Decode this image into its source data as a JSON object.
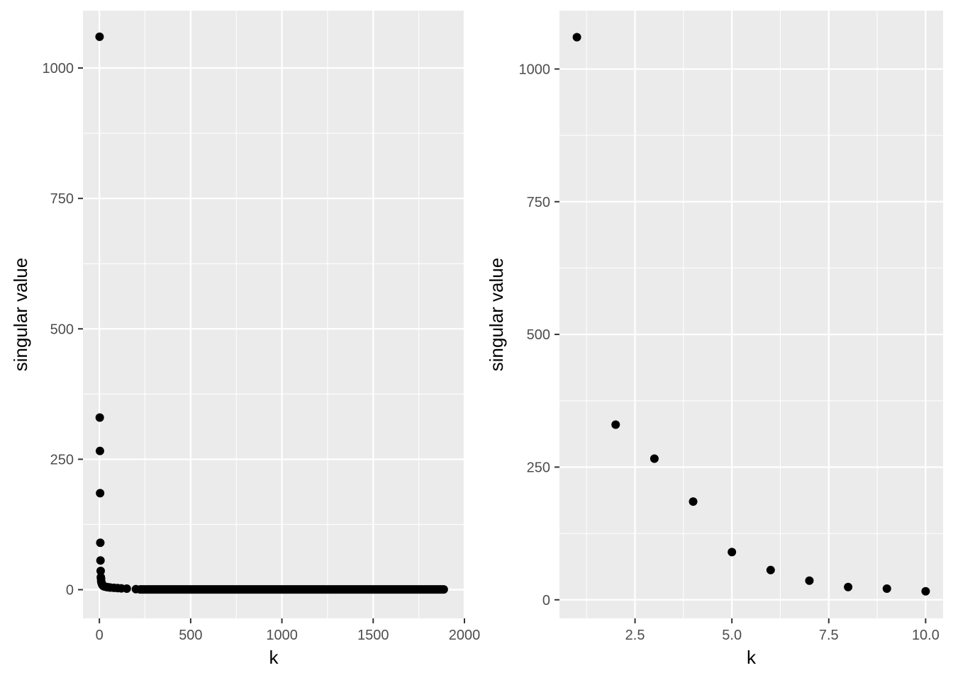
{
  "chart_data": [
    {
      "type": "scatter",
      "xlabel": "k",
      "ylabel": "singular value",
      "xlim": [
        -90,
        2000
      ],
      "ylim": [
        -55,
        1110
      ],
      "x_ticks": [
        0,
        500,
        1000,
        1500,
        2000
      ],
      "x_tick_labels": [
        "0",
        "500",
        "1000",
        "1500",
        "2000"
      ],
      "y_ticks": [
        0,
        250,
        500,
        750,
        1000
      ],
      "y_tick_labels": [
        "0",
        "250",
        "500",
        "750",
        "1000"
      ],
      "grid": true,
      "series": [
        {
          "x": [
            1,
            2,
            3,
            4,
            5,
            6,
            7,
            8,
            9,
            10,
            12,
            14,
            16,
            18,
            20,
            25,
            30,
            40,
            50,
            60,
            80,
            100,
            120,
            150,
            200
          ],
          "y": [
            1060,
            330,
            266,
            185,
            90,
            56,
            36,
            24,
            21,
            16,
            13,
            11,
            9.5,
            8.5,
            7.5,
            6.5,
            6,
            5,
            4.5,
            4,
            3.5,
            3,
            2.5,
            2,
            1
          ]
        }
      ],
      "tail": {
        "x_from": 200,
        "x_to": 1910,
        "value": 0.5
      }
    },
    {
      "type": "scatter",
      "xlabel": "k",
      "ylabel": "singular value",
      "xlim": [
        0.55,
        10.45
      ],
      "ylim": [
        -35,
        1110
      ],
      "x_ticks": [
        2.5,
        5.0,
        7.5,
        10.0
      ],
      "x_tick_labels": [
        "2.5",
        "5.0",
        "7.5",
        "10.0"
      ],
      "y_ticks": [
        0,
        250,
        500,
        750,
        1000
      ],
      "y_tick_labels": [
        "0",
        "250",
        "500",
        "750",
        "1000"
      ],
      "grid": true,
      "series": [
        {
          "x": [
            1,
            2,
            3,
            4,
            5,
            6,
            7,
            8,
            9,
            10
          ],
          "y": [
            1060,
            330,
            266,
            185,
            90,
            56,
            36,
            24,
            21,
            16
          ]
        }
      ]
    }
  ]
}
